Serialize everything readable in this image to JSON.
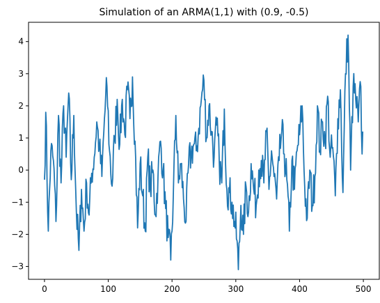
{
  "chart_data": {
    "type": "line",
    "title": "Simulation of an ARMA(1,1) with (0.9, -0.5)",
    "xlabel": "",
    "ylabel": "",
    "xlim": [
      -25,
      525
    ],
    "ylim": [
      -3.4,
      4.6
    ],
    "xticks": [
      0,
      100,
      200,
      300,
      400,
      500
    ],
    "yticks": [
      -3,
      -2,
      -1,
      0,
      1,
      2,
      3,
      4
    ],
    "grid": false,
    "line_color": "#1f77b4",
    "series": [
      {
        "anchors": [
          [
            0,
            -0.3
          ],
          [
            2,
            1.8
          ],
          [
            6,
            -1.9
          ],
          [
            10,
            0.6
          ],
          [
            14,
            0.3
          ],
          [
            18,
            -1.6
          ],
          [
            22,
            1.7
          ],
          [
            26,
            -0.4
          ],
          [
            30,
            2.0
          ],
          [
            34,
            0.4
          ],
          [
            38,
            2.4
          ],
          [
            42,
            -0.3
          ],
          [
            46,
            1.7
          ],
          [
            50,
            -1.3
          ],
          [
            54,
            -2.5
          ],
          [
            58,
            -0.6
          ],
          [
            62,
            -1.9
          ],
          [
            66,
            -0.4
          ],
          [
            70,
            -1.4
          ],
          [
            74,
            -0.1
          ],
          [
            78,
            0.4
          ],
          [
            82,
            1.5
          ],
          [
            86,
            0.7
          ],
          [
            90,
            -0.2
          ],
          [
            94,
            1.6
          ],
          [
            98,
            2.6
          ],
          [
            102,
            0.6
          ],
          [
            106,
            -0.5
          ],
          [
            110,
            1.0
          ],
          [
            114,
            2.2
          ],
          [
            118,
            0.8
          ],
          [
            122,
            2.2
          ],
          [
            126,
            1.1
          ],
          [
            130,
            2.5
          ],
          [
            134,
            1.6
          ],
          [
            138,
            2.9
          ],
          [
            142,
            0.9
          ],
          [
            146,
            -1.8
          ],
          [
            150,
            0.2
          ],
          [
            154,
            -0.8
          ],
          [
            158,
            -1.9
          ],
          [
            162,
            0.4
          ],
          [
            166,
            -0.6
          ],
          [
            170,
            0.0
          ],
          [
            174,
            -1.4
          ],
          [
            178,
            -0.2
          ],
          [
            182,
            0.9
          ],
          [
            186,
            0.0
          ],
          [
            190,
            -1.2
          ],
          [
            194,
            -2.1
          ],
          [
            198,
            -2.8
          ],
          [
            202,
            -0.8
          ],
          [
            206,
            1.7
          ],
          [
            210,
            -0.4
          ],
          [
            214,
            0.2
          ],
          [
            218,
            -0.9
          ],
          [
            222,
            -1.6
          ],
          [
            226,
            0.2
          ],
          [
            230,
            0.5
          ],
          [
            234,
            0.8
          ],
          [
            238,
            0.6
          ],
          [
            242,
            1.3
          ],
          [
            246,
            2.2
          ],
          [
            250,
            2.8
          ],
          [
            254,
            1.0
          ],
          [
            258,
            2.0
          ],
          [
            262,
            1.2
          ],
          [
            266,
            0.4
          ],
          [
            270,
            1.4
          ],
          [
            274,
            0.3
          ],
          [
            278,
            -0.4
          ],
          [
            282,
            1.9
          ],
          [
            286,
            -0.6
          ],
          [
            290,
            -0.7
          ],
          [
            294,
            -1.0
          ],
          [
            298,
            -1.6
          ],
          [
            302,
            -2.2
          ],
          [
            304,
            -3.1
          ],
          [
            308,
            -1.1
          ],
          [
            312,
            -2.0
          ],
          [
            316,
            -0.5
          ],
          [
            320,
            -1.3
          ],
          [
            324,
            0.2
          ],
          [
            328,
            -0.6
          ],
          [
            332,
            -1.1
          ],
          [
            336,
            0.0
          ],
          [
            340,
            0.3
          ],
          [
            344,
            -0.4
          ],
          [
            348,
            1.2
          ],
          [
            352,
            -0.6
          ],
          [
            356,
            0.6
          ],
          [
            360,
            -0.2
          ],
          [
            364,
            -0.9
          ],
          [
            368,
            0.3
          ],
          [
            372,
            1.2
          ],
          [
            376,
            0.5
          ],
          [
            380,
            -0.3
          ],
          [
            384,
            -1.9
          ],
          [
            388,
            0.3
          ],
          [
            392,
            -0.6
          ],
          [
            396,
            0.6
          ],
          [
            400,
            1.1
          ],
          [
            404,
            2.0
          ],
          [
            408,
            -0.5
          ],
          [
            412,
            -1.5
          ],
          [
            416,
            0.0
          ],
          [
            420,
            -1.1
          ],
          [
            424,
            -0.2
          ],
          [
            428,
            2.0
          ],
          [
            432,
            0.6
          ],
          [
            436,
            1.5
          ],
          [
            440,
            0.9
          ],
          [
            444,
            2.3
          ],
          [
            448,
            0.4
          ],
          [
            452,
            0.7
          ],
          [
            456,
            -0.8
          ],
          [
            460,
            1.6
          ],
          [
            464,
            2.5
          ],
          [
            468,
            -0.7
          ],
          [
            472,
            3.0
          ],
          [
            476,
            4.2
          ],
          [
            480,
            0.0
          ],
          [
            484,
            2.6
          ],
          [
            488,
            2.2
          ],
          [
            492,
            1.5
          ],
          [
            496,
            2.6
          ],
          [
            498,
            0.5
          ],
          [
            499,
            1.2
          ]
        ],
        "noise_seed": 7,
        "noise_amp": 0.6,
        "n": 500
      }
    ]
  }
}
